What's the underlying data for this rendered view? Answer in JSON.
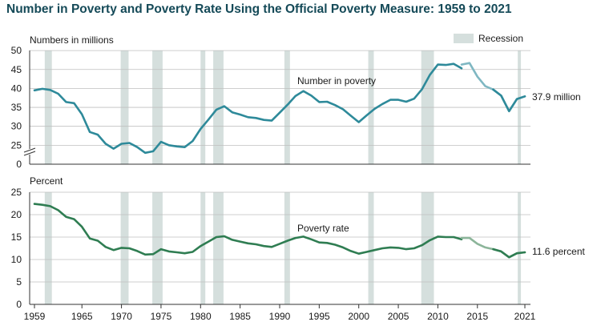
{
  "title": "Number in Poverty and Poverty Rate Using the Official Poverty Measure: 1959 to 2021",
  "colors": {
    "title": "#154a58",
    "recession": "#d5dfdd",
    "number_line": "#2e8a9a",
    "number_line_recent": "#7fb7c2",
    "rate_line": "#2f7d52",
    "rate_line_recent": "#8cb59a",
    "grid": "#bfbfbf",
    "axis": "#333333"
  },
  "legend": {
    "recession_label": "Recession"
  },
  "recessions": [
    [
      1960.3,
      1961.2
    ],
    [
      1969.9,
      1970.9
    ],
    [
      1973.9,
      1975.2
    ],
    [
      1980.0,
      1980.6
    ],
    [
      1981.6,
      1982.9
    ],
    [
      1990.6,
      1991.3
    ],
    [
      2001.2,
      2001.9
    ],
    [
      2007.9,
      2009.5
    ],
    [
      2020.1,
      2020.5
    ]
  ],
  "chart_data": [
    {
      "type": "line",
      "ylabel": "Numbers in millions",
      "series_label": "Number in poverty",
      "end_label": "37.9 million",
      "ylim": [
        0,
        50
      ],
      "yticks": [
        0,
        25,
        30,
        35,
        40,
        45,
        50
      ],
      "axis_break": true,
      "series": [
        {
          "name": "Number in poverty",
          "x": [
            1959,
            1960,
            1961,
            1962,
            1963,
            1964,
            1965,
            1966,
            1967,
            1968,
            1969,
            1970,
            1971,
            1972,
            1973,
            1974,
            1975,
            1976,
            1977,
            1978,
            1979,
            1980,
            1981,
            1982,
            1983,
            1984,
            1985,
            1986,
            1987,
            1988,
            1989,
            1990,
            1991,
            1992,
            1993,
            1994,
            1995,
            1996,
            1997,
            1998,
            1999,
            2000,
            2001,
            2002,
            2003,
            2004,
            2005,
            2006,
            2007,
            2008,
            2009,
            2010,
            2011,
            2012,
            2013
          ],
          "values": [
            39.5,
            39.9,
            39.6,
            38.6,
            36.4,
            36.1,
            33.2,
            28.5,
            27.8,
            25.4,
            24.1,
            25.4,
            25.6,
            24.5,
            23.0,
            23.4,
            25.9,
            25.0,
            24.7,
            24.5,
            26.1,
            29.3,
            31.8,
            34.4,
            35.3,
            33.7,
            33.1,
            32.4,
            32.2,
            31.7,
            31.5,
            33.6,
            35.7,
            38.0,
            39.3,
            38.1,
            36.4,
            36.5,
            35.6,
            34.5,
            32.8,
            31.1,
            32.9,
            34.6,
            35.9,
            37.0,
            37.0,
            36.5,
            37.3,
            39.8,
            43.6,
            46.3,
            46.2,
            46.5,
            45.3
          ]
        },
        {
          "name": "Number in poverty (revised series)",
          "x": [
            2013,
            2014,
            2015,
            2016,
            2017,
            2018,
            2019,
            2020,
            2021
          ],
          "values": [
            46.3,
            46.7,
            43.1,
            40.6,
            39.7,
            38.1,
            34.0,
            37.2,
            37.9
          ]
        }
      ]
    },
    {
      "type": "line",
      "ylabel": "Percent",
      "series_label": "Poverty rate",
      "end_label": "11.6 percent",
      "ylim": [
        0,
        25
      ],
      "yticks": [
        0,
        5,
        10,
        15,
        20,
        25
      ],
      "xlim": [
        1959,
        2021
      ],
      "xticks": [
        "1959",
        "1965",
        "1970",
        "1975",
        "1980",
        "1985",
        "1990",
        "1995",
        "2000",
        "2005",
        "2010",
        "2015",
        "2021"
      ],
      "series": [
        {
          "name": "Poverty rate",
          "x": [
            1959,
            1960,
            1961,
            1962,
            1963,
            1964,
            1965,
            1966,
            1967,
            1968,
            1969,
            1970,
            1971,
            1972,
            1973,
            1974,
            1975,
            1976,
            1977,
            1978,
            1979,
            1980,
            1981,
            1982,
            1983,
            1984,
            1985,
            1986,
            1987,
            1988,
            1989,
            1990,
            1991,
            1992,
            1993,
            1994,
            1995,
            1996,
            1997,
            1998,
            1999,
            2000,
            2001,
            2002,
            2003,
            2004,
            2005,
            2006,
            2007,
            2008,
            2009,
            2010,
            2011,
            2012,
            2013
          ],
          "values": [
            22.4,
            22.2,
            21.9,
            21.0,
            19.5,
            19.0,
            17.3,
            14.7,
            14.2,
            12.8,
            12.1,
            12.6,
            12.5,
            11.9,
            11.1,
            11.2,
            12.3,
            11.8,
            11.6,
            11.4,
            11.7,
            13.0,
            14.0,
            15.0,
            15.2,
            14.4,
            14.0,
            13.6,
            13.4,
            13.0,
            12.8,
            13.5,
            14.2,
            14.8,
            15.1,
            14.5,
            13.8,
            13.7,
            13.3,
            12.7,
            11.9,
            11.3,
            11.7,
            12.1,
            12.5,
            12.7,
            12.6,
            12.3,
            12.5,
            13.2,
            14.3,
            15.1,
            15.0,
            15.0,
            14.5
          ]
        },
        {
          "name": "Poverty rate (revised series)",
          "x": [
            2013,
            2014,
            2015,
            2016,
            2017,
            2018,
            2019,
            2020,
            2021
          ],
          "values": [
            14.8,
            14.8,
            13.5,
            12.7,
            12.3,
            11.8,
            10.5,
            11.4,
            11.6
          ]
        }
      ]
    }
  ]
}
